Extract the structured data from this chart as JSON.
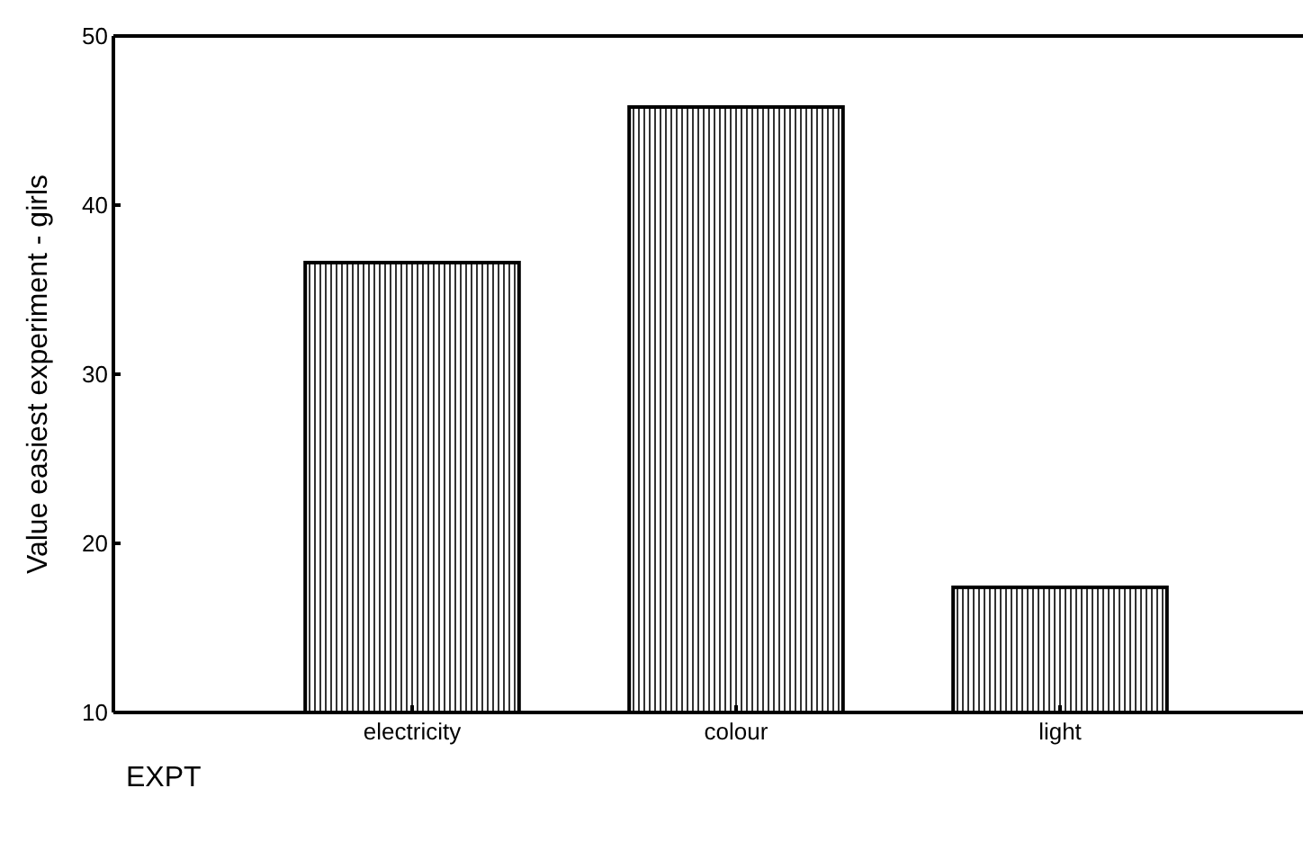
{
  "chart_data": {
    "type": "bar",
    "xlabel": "EXPT",
    "ylabel": "Value easiest experiment - girls",
    "categories": [
      "electricity",
      "colour",
      "light"
    ],
    "values": [
      36.6,
      45.8,
      17.4
    ],
    "color": "#000000",
    "ylim": [
      10,
      50
    ],
    "yticks": [
      10,
      20,
      30,
      40,
      50
    ],
    "grid": false
  }
}
